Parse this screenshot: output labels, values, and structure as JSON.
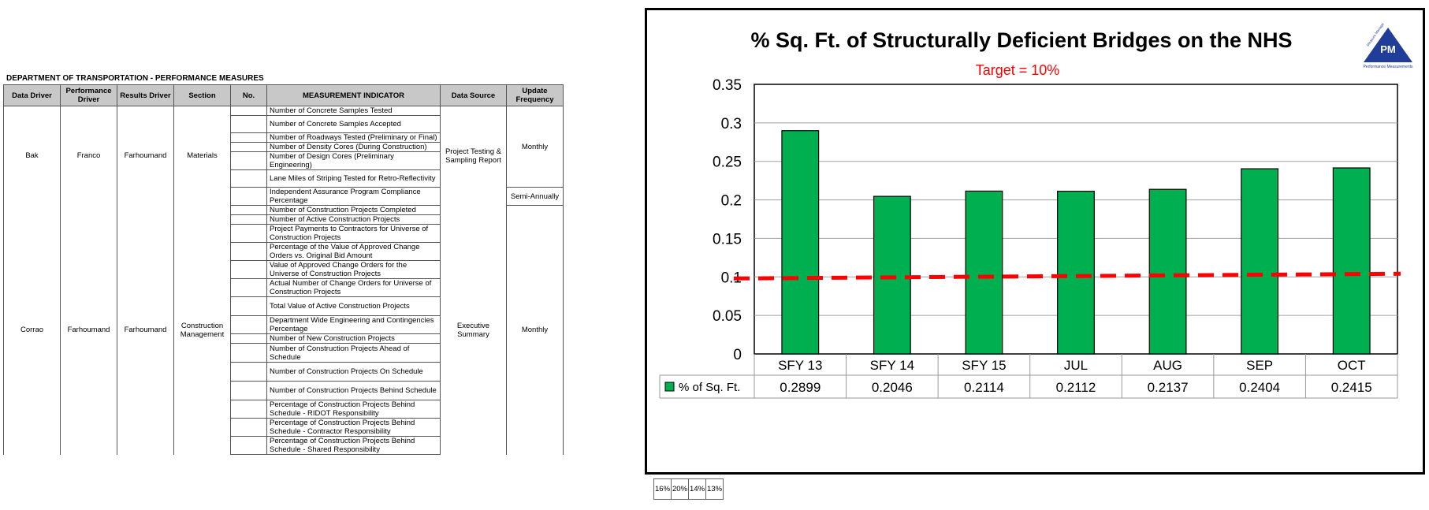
{
  "sheet": {
    "title": "DEPARTMENT OF TRANSPORTATION - PERFORMANCE MEASURES",
    "headers": [
      "Data Driver",
      "Performance Driver",
      "Results Driver",
      "Section",
      "No.",
      "MEASUREMENT INDICATOR",
      "Data Source",
      "Update Frequency"
    ],
    "groups": [
      {
        "data_driver": "Bak",
        "performance_driver": "Franco",
        "results_driver": "Farhoumand",
        "section": "Materials",
        "items": [
          "Number of Concrete Samples Tested",
          "Number of Concrete Samples Accepted",
          "Number of Roadways Tested (Preliminary or Final)",
          "Number of Density Cores (During Construction)",
          "Number of Design Cores (Preliminary Engineering)",
          "Lane Miles of Striping Tested for Retro-Reflectivity",
          "Independent Assurance Program Compliance Percentage"
        ],
        "data_source": "Project Testing & Sampling Report",
        "frequency": "Monthly",
        "frequency_last": "Semi-Annually"
      },
      {
        "data_driver": "Corrao",
        "performance_driver": "Farhoumand",
        "results_driver": "Farhoumand",
        "section": "Construction Management",
        "items": [
          "Number of Construction Projects Completed",
          "Number of Active Construction Projects",
          "Project Payments to Contractors for Universe of Construction Projects",
          "Percentage of the Value of Approved Change Orders vs. Original Bid Amount",
          "Value of Approved Change Orders for the Universe of Construction Projects",
          "Actual Number of Change Orders for Universe of Construction Projects",
          "Total Value of Active Construction Projects",
          "Department Wide Engineering and Contingencies Percentage",
          "Number of New Construction Projects",
          "Number of Construction Projects Ahead of Schedule",
          "Number of Construction Projects On Schedule",
          "Number of Construction Projects Behind Schedule",
          "Percentage of Construction Projects Behind Schedule - RIDOT Responsibility",
          "Percentage of Construction Projects Behind Schedule - Contractor Responsibility",
          "Percentage of Construction Projects Behind Schedule - Shared Responsibility"
        ],
        "data_source": "Executive Summary",
        "frequency": "Monthly"
      }
    ],
    "bottom_strip": [
      "16%",
      "20%",
      "14%",
      "13%"
    ]
  },
  "logo": {
    "letters": "PM",
    "caption": "Performance Measurements",
    "side": "Measure Manage"
  },
  "chart_data": {
    "type": "bar",
    "title": "% Sq. Ft. of Structurally Deficient Bridges on the NHS",
    "subtitle": "Target = 10%",
    "categories": [
      "SFY 13",
      "SFY 14",
      "SFY 15",
      "JUL",
      "AUG",
      "SEP",
      "OCT"
    ],
    "series": [
      {
        "name": "% of Sq. Ft.",
        "values": [
          0.2899,
          0.2046,
          0.2114,
          0.2112,
          0.2137,
          0.2404,
          0.2415
        ],
        "labels": [
          "0.2899",
          "0.2046",
          "0.2114",
          "0.2112",
          "0.2137",
          "0.2404",
          "0.2415"
        ],
        "color": "#00b050"
      }
    ],
    "target": {
      "value": 0.1,
      "color": "#ff0000",
      "style": "dashed"
    },
    "ylim": [
      0,
      0.35
    ],
    "yticks": [
      0,
      0.05,
      0.1,
      0.15,
      0.2,
      0.25,
      0.3,
      0.35
    ],
    "ytick_labels": [
      "0",
      "0.05",
      "0.1",
      "0.15",
      "0.2",
      "0.25",
      "0.3",
      "0.35"
    ],
    "grid": true,
    "legend": "data-table",
    "title_color": "#000000",
    "subtitle_color": "#ff0000"
  }
}
